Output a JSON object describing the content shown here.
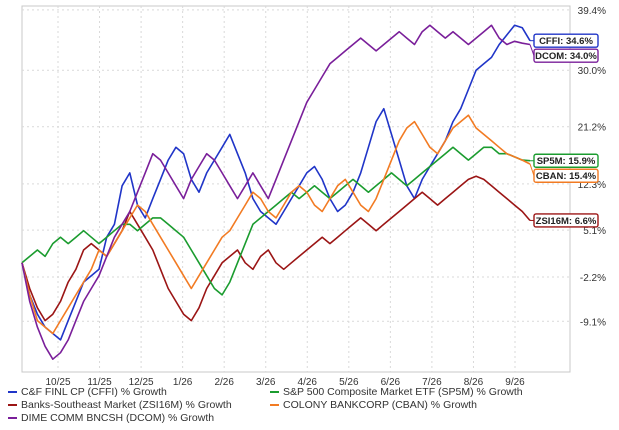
{
  "chart_data": {
    "type": "line",
    "x_ticks": [
      "10/25",
      "11/25",
      "12/25",
      "1/26",
      "2/26",
      "3/26",
      "4/26",
      "5/26",
      "6/26",
      "7/26",
      "8/26",
      "9/26"
    ],
    "y_ticks": [
      "39.4%",
      "30.0%",
      "21.2%",
      "12.3%",
      "5.1%",
      "-2.2%",
      "-9.1%"
    ],
    "y_tick_values": [
      39.4,
      30.0,
      21.2,
      12.3,
      5.1,
      -2.2,
      -9.1
    ],
    "ylim": [
      -17,
      40
    ],
    "grid": true,
    "legend_position": "bottom",
    "series": [
      {
        "name": "C&F FINL CP (CFFI) % Growth",
        "ticker": "CFFI",
        "end_label": "CFFI: 34.6%",
        "color": "#2035c8",
        "values": [
          0,
          -5,
          -8,
          -10,
          -11,
          -12,
          -9,
          -6,
          -3,
          -2,
          -1,
          4,
          6,
          12,
          14,
          9,
          7,
          10,
          13,
          16,
          18,
          17,
          13,
          11,
          14,
          16,
          18,
          20,
          17,
          14,
          10,
          8,
          7,
          6,
          8,
          10,
          12,
          14,
          15,
          13,
          10,
          8,
          9,
          11,
          14,
          18,
          22,
          24,
          20,
          16,
          12,
          10,
          13,
          15,
          17,
          19,
          22,
          24,
          27,
          30,
          31,
          32,
          34,
          35.5,
          37,
          36.6,
          34.6
        ]
      },
      {
        "name": "Banks-Southeast Market (ZSI16M) % Growth",
        "ticker": "ZSI16M",
        "end_label": "ZSI16M: 6.6%",
        "color": "#9b1515",
        "values": [
          0,
          -4,
          -7,
          -9,
          -8,
          -6,
          -3,
          -1,
          2,
          3,
          2,
          1,
          3,
          5,
          8,
          6,
          4,
          2,
          -1,
          -4,
          -6,
          -8,
          -9,
          -7,
          -4,
          -2,
          0,
          1,
          2,
          0,
          -1,
          1,
          2,
          0,
          -1,
          0,
          1,
          2,
          3,
          4,
          3,
          4,
          5,
          6,
          7,
          6,
          5,
          6,
          7,
          8,
          9,
          10,
          11,
          10,
          9,
          10,
          11,
          12,
          13,
          13.5,
          13,
          12,
          11,
          10,
          9,
          8,
          6.6
        ]
      },
      {
        "name": "S&P 500 Composite Market ETF (SP5M) % Growth",
        "ticker": "SP5M",
        "end_label": "SP5M: 15.9%",
        "color": "#1b9c2f",
        "values": [
          0,
          1,
          2,
          1,
          3,
          4,
          3,
          4,
          5,
          4,
          3,
          4,
          5,
          6,
          6,
          5,
          6,
          7,
          7,
          6,
          5,
          4,
          2,
          0,
          -2,
          -4,
          -5,
          -3,
          0,
          3,
          6,
          7,
          8,
          9,
          10,
          11,
          10,
          11,
          12,
          11,
          10,
          11,
          12,
          13,
          12,
          11,
          12,
          13,
          14,
          13,
          12,
          13,
          14,
          15,
          16,
          17,
          18,
          17,
          16,
          17,
          18,
          18,
          17,
          17,
          16.5,
          16,
          15.9
        ]
      },
      {
        "name": "COLONY BANKCORP (CBAN) % Growth",
        "ticker": "CBAN",
        "end_label": "CBAN: 15.4%",
        "color": "#f27b23",
        "values": [
          0,
          -5,
          -9,
          -10,
          -11,
          -9,
          -7,
          -5,
          -3,
          -1,
          2,
          1,
          3,
          5,
          7,
          9,
          8,
          6,
          4,
          2,
          0,
          -2,
          -4,
          -2,
          0,
          2,
          4,
          5,
          7,
          9,
          11,
          10,
          8,
          7,
          9,
          11,
          12,
          11,
          9,
          8,
          10,
          12,
          13,
          11,
          9,
          8,
          10,
          13,
          16,
          19,
          21,
          22,
          20,
          18,
          17,
          19,
          21,
          22,
          23,
          21,
          20,
          19,
          18,
          17,
          16.5,
          16,
          15.4
        ]
      },
      {
        "name": "DIME COMM BNCSH (DCOM) % Growth",
        "ticker": "DCOM",
        "end_label": "DCOM: 34.0%",
        "color": "#7a1f9a",
        "values": [
          0,
          -6,
          -10,
          -13,
          -15,
          -14,
          -12,
          -9,
          -6,
          -4,
          -2,
          1,
          4,
          6,
          8,
          11,
          14,
          17,
          16,
          14,
          12,
          10,
          13,
          15,
          17,
          16,
          14,
          12,
          10,
          12,
          14,
          12,
          10,
          13,
          16,
          19,
          22,
          25,
          27,
          29,
          31,
          32,
          33,
          34,
          35,
          34,
          33,
          34,
          35,
          36,
          35,
          34,
          36,
          37,
          36,
          35,
          36,
          35,
          34,
          35,
          36,
          37,
          35,
          34,
          34.5,
          34.2,
          34.0
        ]
      }
    ],
    "label_order": [
      "CFFI",
      "DCOM",
      "SP5M",
      "CBAN",
      "ZSI16M"
    ]
  }
}
